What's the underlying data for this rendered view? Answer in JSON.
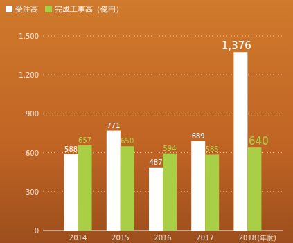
{
  "chart_data": {
    "type": "bar",
    "categories": [
      "2014",
      "2015",
      "2016",
      "2017",
      "2018"
    ],
    "x_label": "(年度)",
    "series": [
      {
        "name": "受注高",
        "color": "#ffffff",
        "values": [
          588,
          771,
          487,
          689,
          1376
        ],
        "value_labels": [
          "588",
          "771",
          "487",
          "689",
          "1,376"
        ]
      },
      {
        "name": "完成工事高（億円）",
        "color": "#a8cf45",
        "values": [
          657,
          650,
          594,
          585,
          640
        ]
      }
    ],
    "ylim": [
      0,
      1500
    ],
    "yticks": [
      0,
      300,
      600,
      900,
      {
        "value": 1200,
        "label": "1,200"
      },
      {
        "value": 1500,
        "label": "1,500"
      }
    ],
    "grid": true,
    "legend": "top-left",
    "data_labels": true
  }
}
